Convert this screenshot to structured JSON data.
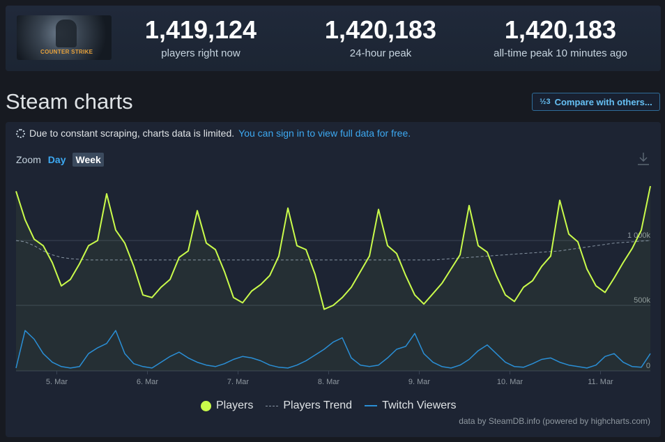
{
  "header": {
    "game_logo_text": "COUNTER STRIKE",
    "stats": [
      {
        "value": "1,419,124",
        "label": "players right now"
      },
      {
        "value": "1,420,183",
        "label": "24-hour peak"
      },
      {
        "value": "1,420,183",
        "label": "all-time peak 10 minutes ago"
      }
    ]
  },
  "title": "Steam charts",
  "compare_button": {
    "icon": "fraction-icon",
    "icon_text": "½3",
    "label": "Compare with others..."
  },
  "notice": {
    "text": "Due to constant scraping, charts data is limited.",
    "link": "You can sign in to view full data for free."
  },
  "zoom": {
    "label": "Zoom",
    "day": "Day",
    "week": "Week",
    "selected": "Week"
  },
  "legend": {
    "players": "Players",
    "trend": "Players Trend",
    "twitch": "Twitch Viewers"
  },
  "credits": "data by SteamDB.info (powered by highcharts.com)",
  "colors": {
    "players": "#cafc4b",
    "trend": "#8896a4",
    "twitch": "#2a8fd6",
    "link": "#3da9f2"
  },
  "chart_data": {
    "type": "line",
    "x": [
      0,
      0.1,
      0.2,
      0.3,
      0.4,
      0.5,
      0.6,
      0.7,
      0.8,
      0.9,
      1.0,
      1.1,
      1.2,
      1.3,
      1.4,
      1.5,
      1.6,
      1.7,
      1.8,
      1.9,
      2.0,
      2.1,
      2.2,
      2.3,
      2.4,
      2.5,
      2.6,
      2.7,
      2.8,
      2.9,
      3.0,
      3.1,
      3.2,
      3.3,
      3.4,
      3.5,
      3.6,
      3.7,
      3.8,
      3.9,
      4.0,
      4.1,
      4.2,
      4.3,
      4.4,
      4.5,
      4.6,
      4.7,
      4.8,
      4.9,
      5.0,
      5.1,
      5.2,
      5.3,
      5.4,
      5.5,
      5.6,
      5.7,
      5.8,
      5.9,
      6.0,
      6.1,
      6.2,
      6.3,
      6.4,
      6.5,
      6.6,
      6.7,
      6.8,
      6.9,
      7.0
    ],
    "x_tick_labels": [
      "5. Mar",
      "6. Mar",
      "7. Mar",
      "8. Mar",
      "9. Mar",
      "10. Mar",
      "11. Mar"
    ],
    "y_tick_labels": [
      "0",
      "500k",
      "1 000k"
    ],
    "ylim": [
      0,
      1500000
    ],
    "series": [
      {
        "name": "Players",
        "values": [
          1380000,
          1160000,
          1010000,
          960000,
          830000,
          650000,
          700000,
          820000,
          960000,
          1000000,
          1360000,
          1080000,
          980000,
          800000,
          580000,
          560000,
          640000,
          700000,
          870000,
          920000,
          1230000,
          980000,
          930000,
          760000,
          560000,
          520000,
          610000,
          660000,
          730000,
          880000,
          1250000,
          960000,
          930000,
          740000,
          470000,
          500000,
          560000,
          640000,
          760000,
          880000,
          1240000,
          960000,
          900000,
          730000,
          580000,
          510000,
          590000,
          670000,
          780000,
          890000,
          1270000,
          960000,
          910000,
          730000,
          580000,
          530000,
          640000,
          690000,
          800000,
          880000,
          1310000,
          1050000,
          990000,
          780000,
          650000,
          600000,
          710000,
          830000,
          940000,
          1080000,
          1420000
        ]
      },
      {
        "name": "Players Trend",
        "values": [
          1000000,
          990000,
          960000,
          920000,
          890000,
          870000,
          860000,
          855000,
          850000,
          850000,
          850000,
          850000,
          850000,
          850000,
          850000,
          850000,
          850000,
          850000,
          850000,
          850000,
          850000,
          850000,
          850000,
          850000,
          850000,
          850000,
          850000,
          850000,
          850000,
          850000,
          850000,
          850000,
          850000,
          850000,
          850000,
          850000,
          850000,
          850000,
          850000,
          850000,
          850000,
          850000,
          850000,
          850000,
          850000,
          850000,
          850000,
          855000,
          860000,
          865000,
          870000,
          875000,
          880000,
          885000,
          890000,
          895000,
          900000,
          905000,
          910000,
          915000,
          920000,
          930000,
          940000,
          950000,
          960000,
          970000,
          980000,
          985000,
          990000,
          995000,
          1000000
        ]
      },
      {
        "name": "Twitch Viewers",
        "values": [
          20000,
          280000,
          220000,
          120000,
          60000,
          30000,
          20000,
          30000,
          120000,
          160000,
          190000,
          280000,
          120000,
          50000,
          30000,
          20000,
          60000,
          100000,
          130000,
          90000,
          60000,
          40000,
          30000,
          50000,
          80000,
          100000,
          90000,
          70000,
          40000,
          25000,
          20000,
          40000,
          70000,
          110000,
          150000,
          200000,
          230000,
          90000,
          40000,
          30000,
          40000,
          90000,
          150000,
          170000,
          260000,
          120000,
          60000,
          30000,
          20000,
          40000,
          80000,
          140000,
          180000,
          120000,
          60000,
          30000,
          25000,
          50000,
          80000,
          90000,
          60000,
          40000,
          30000,
          20000,
          40000,
          100000,
          120000,
          60000,
          30000,
          25000,
          120000
        ]
      }
    ],
    "legend_position": "bottom",
    "grid": true
  }
}
